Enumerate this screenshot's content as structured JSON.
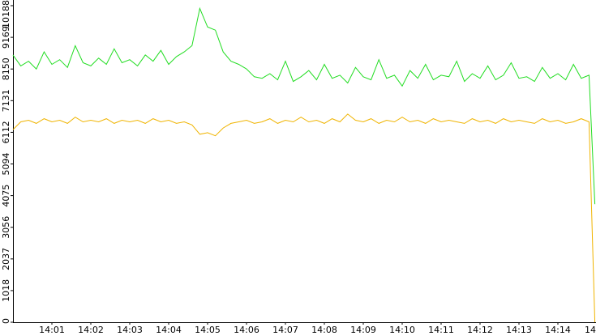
{
  "chart_data": {
    "type": "line",
    "x": [
      0,
      0.2,
      0.4,
      0.6,
      0.8,
      1,
      1.2,
      1.4,
      1.6,
      1.8,
      2,
      2.2,
      2.4,
      2.6,
      2.8,
      3,
      3.2,
      3.4,
      3.6,
      3.8,
      4,
      4.2,
      4.4,
      4.6,
      4.8,
      5,
      5.2,
      5.4,
      5.6,
      5.8,
      6,
      6.2,
      6.4,
      6.6,
      6.8,
      7,
      7.2,
      7.4,
      7.6,
      7.8,
      8,
      8.2,
      8.4,
      8.6,
      8.8,
      9,
      9.2,
      9.4,
      9.6,
      9.8,
      10,
      10.2,
      10.4,
      10.6,
      10.8,
      11,
      11.2,
      11.4,
      11.6,
      11.8,
      12,
      12.2,
      12.4,
      12.6,
      12.8,
      13,
      13.2,
      13.4,
      13.6,
      13.8,
      14,
      14.2,
      14.4,
      14.6,
      14.8,
      14.95
    ],
    "series": [
      {
        "color": "#22dd22",
        "values": [
          8600,
          8250,
          8400,
          8150,
          8700,
          8300,
          8450,
          8200,
          8900,
          8350,
          8250,
          8500,
          8300,
          8800,
          8350,
          8450,
          8250,
          8600,
          8400,
          8750,
          8300,
          8550,
          8700,
          8900,
          10100,
          9500,
          9400,
          8700,
          8400,
          8300,
          8150,
          7900,
          7850,
          8000,
          7800,
          8400,
          7750,
          7900,
          8100,
          7800,
          8300,
          7850,
          7950,
          7700,
          8200,
          7900,
          7800,
          8450,
          7850,
          7950,
          7600,
          8100,
          7850,
          8300,
          7800,
          7950,
          7900,
          8400,
          7750,
          8000,
          7850,
          8250,
          7800,
          7950,
          8350,
          7850,
          7900,
          7750,
          8200,
          7850,
          8000,
          7800,
          8300,
          7850,
          7950,
          3800
        ]
      },
      {
        "color": "#f0b400",
        "values": [
          6200,
          6450,
          6500,
          6400,
          6550,
          6450,
          6500,
          6400,
          6600,
          6450,
          6500,
          6450,
          6550,
          6400,
          6500,
          6450,
          6500,
          6400,
          6550,
          6450,
          6500,
          6400,
          6450,
          6350,
          6050,
          6100,
          6000,
          6250,
          6400,
          6450,
          6500,
          6400,
          6450,
          6550,
          6400,
          6500,
          6450,
          6600,
          6450,
          6500,
          6400,
          6550,
          6450,
          6700,
          6500,
          6450,
          6550,
          6400,
          6500,
          6450,
          6600,
          6450,
          6500,
          6400,
          6550,
          6450,
          6500,
          6450,
          6400,
          6550,
          6450,
          6500,
          6400,
          6550,
          6450,
          6500,
          6450,
          6400,
          6550,
          6450,
          6500,
          6400,
          6450,
          6550,
          6450,
          0
        ]
      }
    ],
    "xlim": [
      0,
      15
    ],
    "xticks": [
      {
        "value": 1,
        "label": "14:01"
      },
      {
        "value": 2,
        "label": "14:02"
      },
      {
        "value": 3,
        "label": "14:03"
      },
      {
        "value": 4,
        "label": "14:04"
      },
      {
        "value": 5,
        "label": "14:05"
      },
      {
        "value": 6,
        "label": "14:06"
      },
      {
        "value": 7,
        "label": "14:07"
      },
      {
        "value": 8,
        "label": "14:08"
      },
      {
        "value": 9,
        "label": "14:09"
      },
      {
        "value": 10,
        "label": "14:10"
      },
      {
        "value": 11,
        "label": "14:11"
      },
      {
        "value": 12,
        "label": "14:12"
      },
      {
        "value": 13,
        "label": "14:13"
      },
      {
        "value": 14,
        "label": "14:14"
      },
      {
        "value": 15,
        "label": "14"
      }
    ],
    "ylim": [
      0,
      10188
    ],
    "yticks": [
      0,
      1018,
      2037,
      3056,
      4075,
      5094,
      6112,
      7131,
      8150,
      9169,
      10188
    ],
    "grid": false
  }
}
